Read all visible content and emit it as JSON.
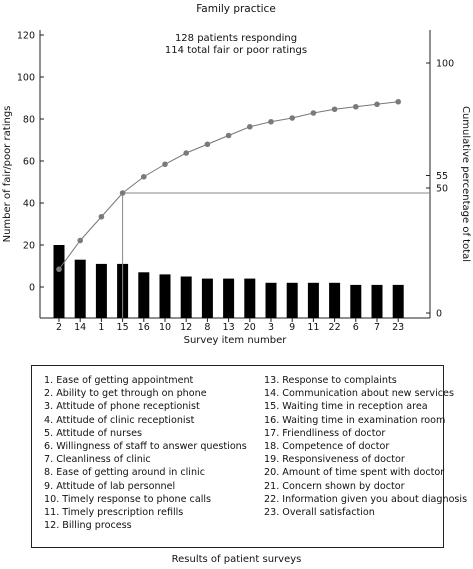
{
  "chart_data": {
    "type": "bar",
    "title": "Family practice",
    "subtitle_lines": [
      "128 patients responding",
      "114 total fair or poor ratings"
    ],
    "xlabel": "Survey item number",
    "ylabel": "Number of fair/poor ratings",
    "y2label": "Cumulative percentage of total",
    "categories": [
      "2",
      "14",
      "1",
      "15",
      "16",
      "10",
      "12",
      "8",
      "13",
      "20",
      "3",
      "9",
      "11",
      "22",
      "6",
      "7",
      "23"
    ],
    "series": [
      {
        "type": "bar",
        "values": [
          20,
          13,
          11,
          11,
          7,
          6,
          5,
          4,
          4,
          4,
          2,
          2,
          2,
          2,
          1,
          1,
          1
        ]
      },
      {
        "type": "line",
        "axis": "right",
        "values": [
          17.5,
          29,
          38.5,
          48,
          54.5,
          59.5,
          64,
          67.5,
          71,
          74.5,
          76.5,
          78,
          80,
          81.5,
          82.5,
          83.5,
          84.5
        ]
      }
    ],
    "ylim": [
      0,
      120
    ],
    "yticks": [
      "0",
      "20",
      "40",
      "60",
      "80",
      "100",
      "120"
    ],
    "y2ticks": [
      "0",
      "50",
      "55",
      "100"
    ],
    "reference_line_value": 55,
    "grid": false,
    "legend": {
      "left": [
        "1. Ease of getting appointment",
        "2. Ability to get through on phone",
        "3. Attitude of phone receptionist",
        "4. Attitude of clinic receptionist",
        "5. Attitude of nurses",
        "6. Willingness of staff to answer questions",
        "7. Cleanliness of clinic",
        "8. Ease of getting around in clinic",
        "9. Attitude of lab personnel",
        "10. Timely response to phone calls",
        "11. Timely prescription refills",
        "12. Billing process"
      ],
      "right": [
        "13. Response to complaints",
        "14. Communication about new services",
        "15. Waiting time in reception area",
        "16. Waiting time in examination room",
        "17. Friendliness of doctor",
        "18. Competence of doctor",
        "19. Responsiveness of doctor",
        "20. Amount of time spent with doctor",
        "21. Concern shown by doctor",
        "22. Information given you about diagnosis",
        "23. Overall satisfaction"
      ]
    }
  },
  "caption": "Results of patient surveys"
}
